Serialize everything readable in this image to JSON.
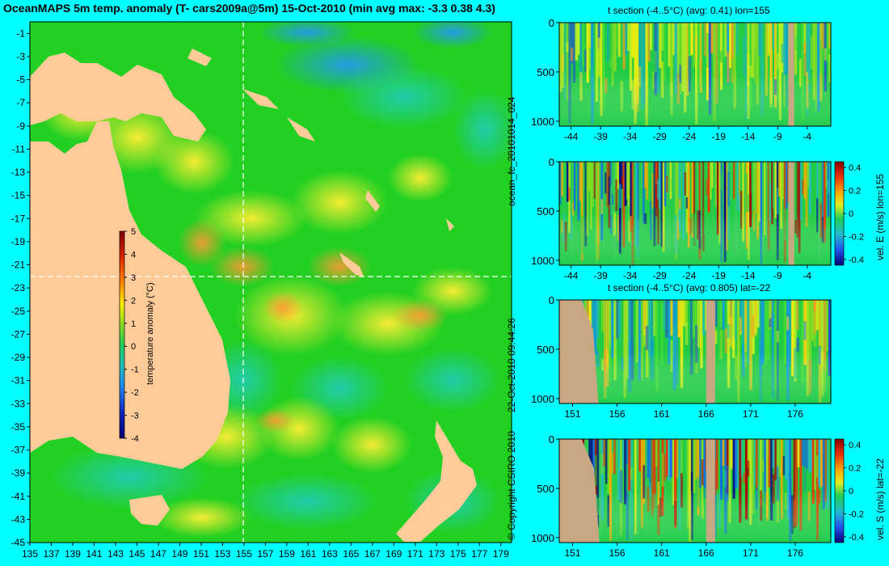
{
  "figure": {
    "title": "OceanMAPS 5m temp. anomaly (T- cars2009a@5m) 15-Oct-2010 (min avg max: -3.3 0.38 4.3)",
    "run_id": "ocean_fc_20101014_024",
    "issued": "22-Oct-2010 09:44:26",
    "copyright": "© Copyright CSIRO 2010",
    "colors": {
      "background": "#00ffff",
      "land": "#ffcc99",
      "section_land": "#c8a882",
      "ocean": "#22d022"
    }
  },
  "chart_data": [
    {
      "type": "heatmap",
      "name": "map",
      "title": "OceanMAPS 5m temp. anomaly (T- cars2009a@5m) 15-Oct-2010 (min avg max: -3.3 0.38 4.3)",
      "x_ticks": [
        "135",
        "137",
        "139",
        "141",
        "143",
        "145",
        "147",
        "149",
        "151",
        "153",
        "155",
        "157",
        "159",
        "161",
        "163",
        "165",
        "167",
        "169",
        "171",
        "173",
        "175",
        "177",
        "179"
      ],
      "y_ticks": [
        "-1",
        "-3",
        "-5",
        "-7",
        "-9",
        "-11",
        "-13",
        "-15",
        "-17",
        "-19",
        "-21",
        "-23",
        "-25",
        "-27",
        "-29",
        "-31",
        "-33",
        "-35",
        "-37",
        "-39",
        "-41",
        "-43",
        "-45"
      ],
      "xlim": [
        135,
        180
      ],
      "ylim": [
        -45,
        0
      ],
      "section_lines": {
        "lon": 155,
        "lat": -22
      },
      "colorbar": {
        "label": "temperature anomaly (°C)",
        "ticks": [
          "5",
          "4",
          "3",
          "2",
          "1",
          "0",
          "-1",
          "-2",
          "-3",
          "-4"
        ],
        "range": [
          -4,
          5
        ]
      },
      "stats": {
        "min": -3.3,
        "avg": 0.38,
        "max": 4.3
      }
    },
    {
      "type": "heatmap",
      "name": "t-section-lon",
      "title": "t section (-4..5°C) (avg: 0.41) lon=155",
      "x_ticks": [
        "-44",
        "-39",
        "-34",
        "-29",
        "-24",
        "-19",
        "-14",
        "-9",
        "-4"
      ],
      "y_ticks": [
        "0",
        "500",
        "1000"
      ],
      "xlim": [
        -46,
        0
      ],
      "ylim": [
        1050,
        0
      ]
    },
    {
      "type": "heatmap",
      "name": "u-section-lon",
      "title": "",
      "x_ticks": [
        "-44",
        "-39",
        "-34",
        "-29",
        "-24",
        "-19",
        "-14",
        "-9",
        "-4"
      ],
      "y_ticks": [
        "0",
        "500",
        "1000"
      ],
      "xlim": [
        -46,
        0
      ],
      "ylim": [
        1050,
        0
      ],
      "colorbar": {
        "label": "vel. E (m/s) lon=155",
        "ticks": [
          "0.4",
          "0.2",
          "0",
          "-0.2",
          "-0.4"
        ],
        "range": [
          -0.45,
          0.45
        ]
      }
    },
    {
      "type": "heatmap",
      "name": "t-section-lat",
      "title": "t section (-4..5°C) (avg: 0.805) lat=-22",
      "x_ticks": [
        "151",
        "156",
        "161",
        "166",
        "171",
        "176"
      ],
      "y_ticks": [
        "0",
        "500",
        "1000"
      ],
      "xlim": [
        149.5,
        180
      ],
      "ylim": [
        1050,
        0
      ]
    },
    {
      "type": "heatmap",
      "name": "v-section-lat",
      "title": "",
      "x_ticks": [
        "151",
        "156",
        "161",
        "166",
        "171",
        "176"
      ],
      "y_ticks": [
        "0",
        "500",
        "1000"
      ],
      "xlim": [
        149.5,
        180
      ],
      "ylim": [
        1050,
        0
      ],
      "colorbar": {
        "label": "vel. S (m/s) lat=-22",
        "ticks": [
          "0.4",
          "0.2",
          "0",
          "-0.2",
          "-0.4"
        ],
        "range": [
          -0.45,
          0.45
        ]
      }
    }
  ]
}
